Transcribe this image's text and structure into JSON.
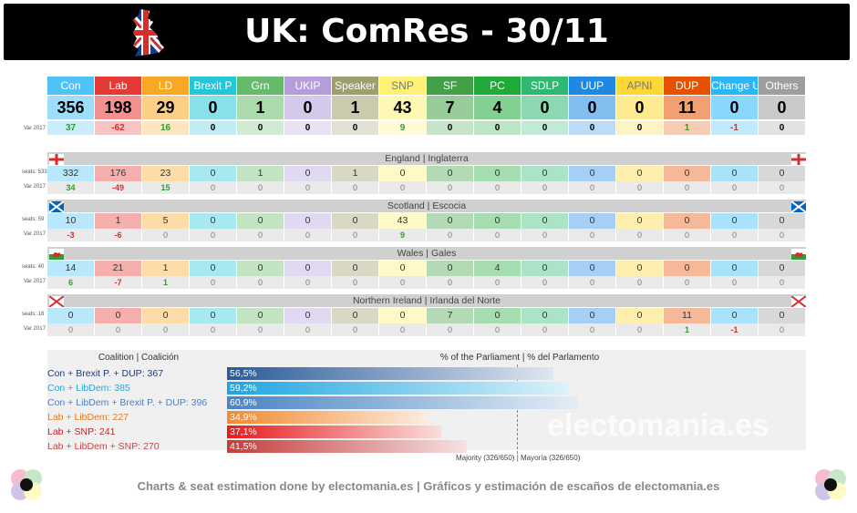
{
  "title": "UK: ComRes - 30/11",
  "var_label": "Var 2017",
  "colors": {
    "Con": "#4fc3f7",
    "Lab": "#e53935",
    "LD": "#f9a825",
    "Brexit P": "#26c6da",
    "Grn": "#66bb6a",
    "UKIP": "#b39ddb",
    "Speaker": "#9e9e6e",
    "SNP": "#fff176",
    "SF": "#43a047",
    "PC": "#1faa3a",
    "SDLP": "#2eb872",
    "UUP": "#1e88e5",
    "APNI": "#fdd835",
    "DUP": "#e65100",
    "Change UK": "#29b6f6",
    "Others": "#9e9e9e"
  },
  "chart_data": [
    {
      "type": "table",
      "title": "UK: ComRes - 30/11",
      "columns": [
        "Con",
        "Lab",
        "LD",
        "Brexit P",
        "Grn",
        "UKIP",
        "Speaker",
        "SNP",
        "SF",
        "PC",
        "SDLP",
        "UUP",
        "APNI",
        "DUP",
        "Change UK",
        "Others"
      ],
      "national": {
        "seats": [
          "356",
          "198",
          "29",
          "0",
          "1",
          "0",
          "1",
          "43",
          "7",
          "4",
          "0",
          "0",
          "0",
          "11",
          "0",
          "0"
        ],
        "var2017": [
          "37",
          "-62",
          "16",
          "0",
          "0",
          "0",
          "0",
          "9",
          "0",
          "0",
          "0",
          "0",
          "0",
          "1",
          "-1",
          "0"
        ]
      },
      "regions": [
        {
          "name": "England | Inglaterra",
          "seats_label": "seats: 533",
          "seats": [
            "332",
            "176",
            "23",
            "0",
            "1",
            "0",
            "1",
            "0",
            "0",
            "0",
            "0",
            "0",
            "0",
            "0",
            "0",
            "0"
          ],
          "var2017": [
            "34",
            "-49",
            "15",
            "0",
            "0",
            "0",
            "0",
            "0",
            "0",
            "0",
            "0",
            "0",
            "0",
            "0",
            "0",
            "0"
          ]
        },
        {
          "name": "Scotland | Escocia",
          "seats_label": "seats: 59",
          "seats": [
            "10",
            "1",
            "5",
            "0",
            "0",
            "0",
            "0",
            "43",
            "0",
            "0",
            "0",
            "0",
            "0",
            "0",
            "0",
            "0"
          ],
          "var2017": [
            "-3",
            "-6",
            "0",
            "0",
            "0",
            "0",
            "0",
            "9",
            "0",
            "0",
            "0",
            "0",
            "0",
            "0",
            "0",
            "0"
          ]
        },
        {
          "name": "Wales | Gales",
          "seats_label": "seats: 40",
          "seats": [
            "14",
            "21",
            "1",
            "0",
            "0",
            "0",
            "0",
            "0",
            "0",
            "4",
            "0",
            "0",
            "0",
            "0",
            "0",
            "0"
          ],
          "var2017": [
            "6",
            "-7",
            "1",
            "0",
            "0",
            "0",
            "0",
            "0",
            "0",
            "0",
            "0",
            "0",
            "0",
            "0",
            "0",
            "0"
          ]
        },
        {
          "name": "Northern Ireland | Irlanda del Norte",
          "seats_label": "seats: 18",
          "seats": [
            "0",
            "0",
            "0",
            "0",
            "0",
            "0",
            "0",
            "0",
            "7",
            "0",
            "0",
            "0",
            "0",
            "11",
            "0",
            "0"
          ],
          "var2017": [
            "0",
            "0",
            "0",
            "0",
            "0",
            "0",
            "0",
            "0",
            "0",
            "0",
            "0",
            "0",
            "0",
            "1",
            "-1",
            "0"
          ]
        }
      ]
    },
    {
      "type": "bar",
      "header_left": "Coalition | Coalición",
      "header_right": "% of the Parliament | % del Parlamento",
      "categories": [
        "Con + Brexit P. + DUP: 367",
        "Con + LibDem: 385",
        "Con + LibDem + Brexit P. + DUP: 396",
        "Lab + LibDem: 227",
        "Lab + SNP: 241",
        "Lab + LibDem + SNP: 270"
      ],
      "value_labels": [
        "56,5%",
        "59,2%",
        "60,9%",
        "34,9%",
        "37,1%",
        "41,5%"
      ],
      "values": [
        56.5,
        59.2,
        60.9,
        34.9,
        37.1,
        41.5
      ],
      "label_colors": [
        "#1f3b73",
        "#29a3d6",
        "#4f7fb8",
        "#e07b20",
        "#cc1f1f",
        "#c24a4a"
      ],
      "bar_colors": [
        "#2a5a99",
        "#1ea5e0",
        "#4a84c4",
        "#f28a30",
        "#e51c1c",
        "#c43c3c"
      ],
      "majority_label": "Majority (326/650) | Mayoría (326/650)",
      "majority_pct": 50.2
    }
  ],
  "watermark": "electomania.es",
  "footer": "Charts & seat estimation done by electomania.es  |  Gráficos y estimación de escaños de electomania.es"
}
